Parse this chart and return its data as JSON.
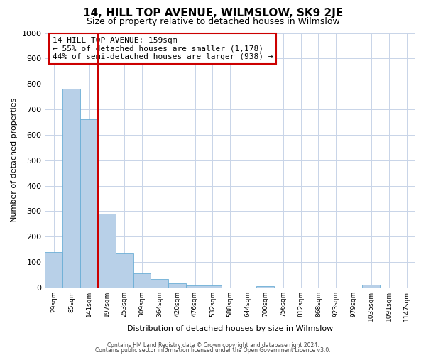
{
  "title": "14, HILL TOP AVENUE, WILMSLOW, SK9 2JE",
  "subtitle": "Size of property relative to detached houses in Wilmslow",
  "xlabel": "Distribution of detached houses by size in Wilmslow",
  "ylabel": "Number of detached properties",
  "bar_labels": [
    "29sqm",
    "85sqm",
    "141sqm",
    "197sqm",
    "253sqm",
    "309sqm",
    "364sqm",
    "420sqm",
    "476sqm",
    "532sqm",
    "588sqm",
    "644sqm",
    "700sqm",
    "756sqm",
    "812sqm",
    "868sqm",
    "923sqm",
    "979sqm",
    "1035sqm",
    "1091sqm",
    "1147sqm"
  ],
  "bar_values": [
    140,
    780,
    660,
    290,
    133,
    55,
    33,
    18,
    9,
    7,
    0,
    0,
    5,
    0,
    0,
    0,
    0,
    0,
    10,
    0,
    0
  ],
  "bar_color": "#b8d0e8",
  "bar_edge_color": "#6baed6",
  "red_line_index": 2,
  "annotation_text_line1": "14 HILL TOP AVENUE: 159sqm",
  "annotation_text_line2": "← 55% of detached houses are smaller (1,178)",
  "annotation_text_line3": "44% of semi-detached houses are larger (938) →",
  "ylim": [
    0,
    1000
  ],
  "yticks": [
    0,
    100,
    200,
    300,
    400,
    500,
    600,
    700,
    800,
    900,
    1000
  ],
  "footer_line1": "Contains HM Land Registry data © Crown copyright and database right 2024.",
  "footer_line2": "Contains public sector information licensed under the Open Government Licence v3.0.",
  "bg_color": "#ffffff",
  "grid_color": "#c8d4e8",
  "annotation_box_color": "#ffffff",
  "annotation_box_edge": "#cc0000",
  "red_line_color": "#cc0000",
  "title_fontsize": 11,
  "subtitle_fontsize": 9,
  "ylabel_fontsize": 8,
  "xlabel_fontsize": 8,
  "ann_fontsize": 8,
  "footer_fontsize": 5.5,
  "ytick_fontsize": 8,
  "xtick_fontsize": 6.5
}
